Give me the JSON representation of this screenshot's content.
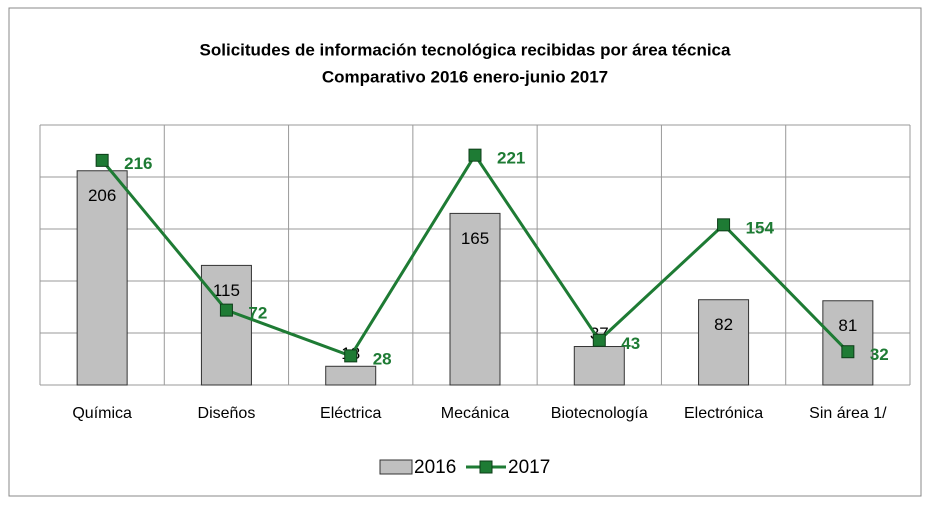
{
  "chart_data": {
    "type": "bar-line",
    "title": "Solicitudes de información tecnológica recibidas por área técnica",
    "subtitle": "Comparativo 2016 enero-junio 2017",
    "categories": [
      "Química",
      "Diseños",
      "Eléctrica",
      "Mecánica",
      "Biotecnología",
      "Electrónica",
      "Sin área 1/"
    ],
    "series": [
      {
        "name": "2016",
        "color": "#c0c0c0",
        "values": [
          206,
          115,
          18,
          165,
          37,
          82,
          81
        ]
      },
      {
        "name": "2017",
        "color": "#1e7b34",
        "values": [
          216,
          72,
          28,
          221,
          43,
          154,
          32
        ]
      }
    ],
    "ylim": [
      0,
      250
    ],
    "yticks": [
      0,
      50,
      100,
      150,
      200,
      250
    ],
    "grid": true,
    "legend": "bottom"
  }
}
